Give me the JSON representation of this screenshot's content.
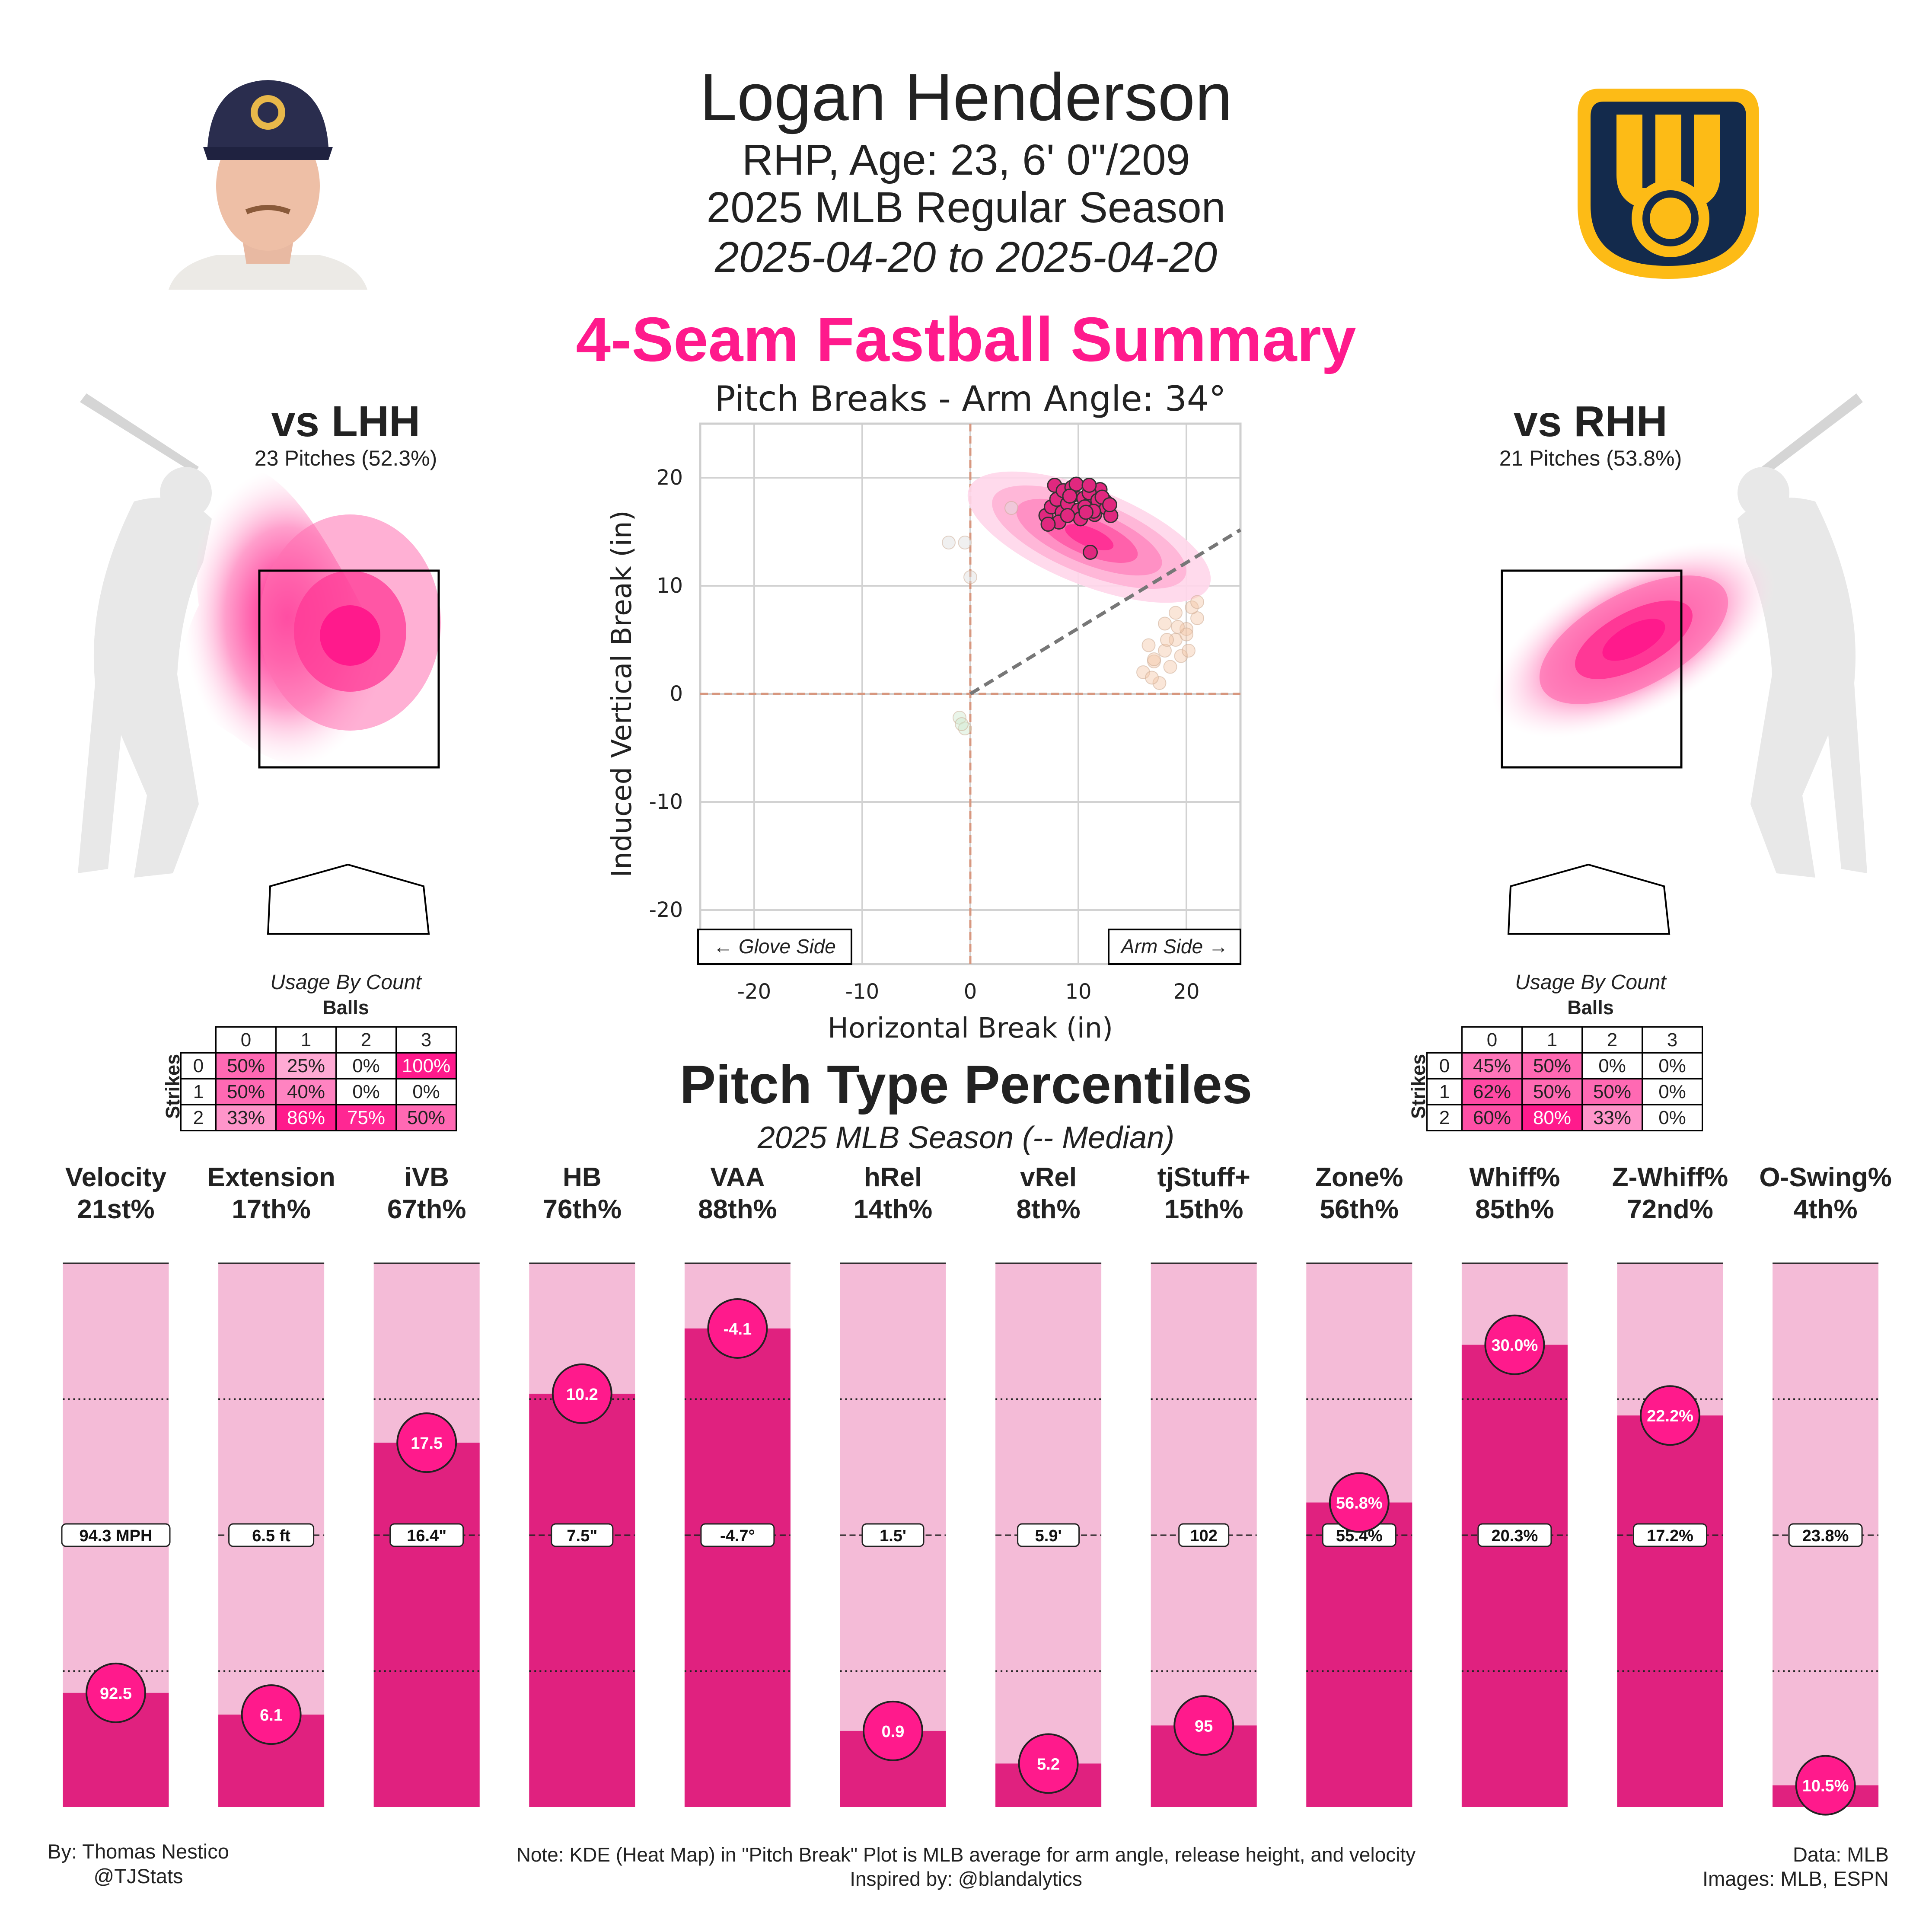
{
  "header": {
    "player_name": "Logan Henderson",
    "bio": "RHP, Age: 23, 6' 0\"/209",
    "season": "2025 MLB Regular Season",
    "date_range": "2025-04-20 to 2025-04-20"
  },
  "summary_title": "4-Seam Fastball Summary",
  "accent_color": "#ff1a8c",
  "lhh": {
    "title": "vs LHH",
    "pitches": "23 Pitches (52.3%)",
    "usage_caption": "Usage By Count",
    "balls_label": "Balls",
    "strikes_label": "Strikes",
    "ball_headers": [
      "0",
      "1",
      "2",
      "3"
    ],
    "strike_headers": [
      "0",
      "1",
      "2"
    ],
    "cells": [
      [
        "50%",
        "25%",
        "0%",
        "100%"
      ],
      [
        "50%",
        "40%",
        "0%",
        "0%"
      ],
      [
        "33%",
        "86%",
        "75%",
        "50%"
      ]
    ]
  },
  "rhh": {
    "title": "vs RHH",
    "pitches": "21 Pitches (53.8%)",
    "usage_caption": "Usage By Count",
    "balls_label": "Balls",
    "strikes_label": "Strikes",
    "ball_headers": [
      "0",
      "1",
      "2",
      "3"
    ],
    "strike_headers": [
      "0",
      "1",
      "2"
    ],
    "cells": [
      [
        "45%",
        "50%",
        "0%",
        "0%"
      ],
      [
        "62%",
        "50%",
        "50%",
        "0%"
      ],
      [
        "60%",
        "80%",
        "33%",
        "0%"
      ]
    ]
  },
  "break_plot": {
    "title": "Pitch Breaks - Arm Angle: 34°",
    "xlabel": "Horizontal Break (in)",
    "ylabel": "Induced Vertical Break (in)",
    "xticks": [
      -20,
      -10,
      0,
      10,
      20
    ],
    "yticks": [
      -20,
      -10,
      0,
      10,
      20
    ],
    "glove_label": "← Glove Side",
    "arm_label": "Arm Side →"
  },
  "percentiles": {
    "title": "Pitch Type Percentiles",
    "subtitle": "2025 MLB Season (-- Median)"
  },
  "footer": {
    "by": "By: Thomas Nestico",
    "handle": "@TJStats",
    "note": "Note: KDE (Heat Map) in \"Pitch Break\" Plot is MLB average for arm angle, release height, and velocity",
    "inspired": "Inspired by: @blandalytics",
    "data_src": "Data: MLB",
    "images_src": "Images: MLB, ESPN"
  },
  "chart_data": [
    {
      "type": "scatter",
      "title": "Pitch Breaks - Arm Angle: 34°",
      "xlabel": "Horizontal Break (in)",
      "ylabel": "Induced Vertical Break (in)",
      "xlim": [
        -25,
        25
      ],
      "ylim": [
        -25,
        25
      ],
      "arm_angle_deg": 34,
      "series": [
        {
          "name": "4-Seam Fastball",
          "color": "#e0287f",
          "x": [
            7,
            7.5,
            8,
            8.5,
            9,
            9.5,
            10,
            10.5,
            11,
            11.5,
            12,
            12.5,
            7.8,
            8.6,
            9.4,
            10.2,
            11,
            11.8,
            12.6,
            8.2,
            9,
            9.8,
            10.6,
            11.4,
            12.2,
            13,
            7.2,
            11,
            9.2,
            10.7,
            12.9,
            11.1
          ],
          "y": [
            16.5,
            17.3,
            18,
            16.8,
            17.6,
            18.4,
            17,
            18.1,
            17.5,
            16.6,
            18.9,
            17.8,
            19.3,
            18.8,
            19.1,
            16.2,
            18.6,
            17.9,
            17.2,
            15.9,
            16.5,
            19.4,
            17.3,
            16.9,
            18.2,
            16.5,
            15.7,
            19.3,
            18.3,
            16.8,
            17.5,
            13.1
          ]
        },
        {
          "name": "Other (faded)",
          "color": "#f3c7a8",
          "x": [
            16,
            17,
            18,
            19,
            20,
            21,
            17.5,
            18.5,
            19.5,
            20.5,
            16.5,
            18,
            19,
            20,
            21,
            17,
            18.2,
            19.2,
            20.2,
            16.8
          ],
          "y": [
            2,
            3,
            4,
            5,
            6,
            7,
            1,
            2.5,
            3.5,
            8,
            4.5,
            6.5,
            7.5,
            5.5,
            8.5,
            3.2,
            5,
            6.2,
            4,
            1.5
          ]
        },
        {
          "name": "Other 2 (faded)",
          "color": "#dddddd",
          "x": [
            -2,
            -0.5,
            0,
            3.8
          ],
          "y": [
            14,
            14,
            10.8,
            17.2
          ]
        },
        {
          "name": "Other 3 (faded)",
          "color": "#cfe8cf",
          "x": [
            -1,
            -0.5,
            -0.8
          ],
          "y": [
            -2.2,
            -3.2,
            -2.8
          ]
        }
      ]
    },
    {
      "type": "bar",
      "title": "Pitch Type Percentiles",
      "ylim": [
        0,
        100
      ],
      "categories": [
        "Velocity",
        "Extension",
        "iVB",
        "HB",
        "VAA",
        "hRel",
        "vRel",
        "tjStuff+",
        "Zone%",
        "Whiff%",
        "Z-Whiff%",
        "O-Swing%"
      ],
      "percentile_labels": [
        "21st%",
        "17th%",
        "67th%",
        "76th%",
        "88th%",
        "14th%",
        "8th%",
        "15th%",
        "56th%",
        "85th%",
        "72nd%",
        "4th%"
      ],
      "percentiles": [
        21,
        17,
        67,
        76,
        88,
        14,
        8,
        15,
        56,
        85,
        72,
        4
      ],
      "values": [
        "92.5",
        "6.1",
        "17.5",
        "10.2",
        "-4.1",
        "0.9",
        "5.2",
        "95",
        "56.8%",
        "30.0%",
        "22.2%",
        "10.5%"
      ],
      "medians": [
        "94.3 MPH",
        "6.5 ft",
        "16.4\"",
        "7.5\"",
        "-4.7°",
        "1.5'",
        "5.9'",
        "102",
        "55.4%",
        "20.3%",
        "17.2%",
        "23.8%"
      ]
    }
  ]
}
